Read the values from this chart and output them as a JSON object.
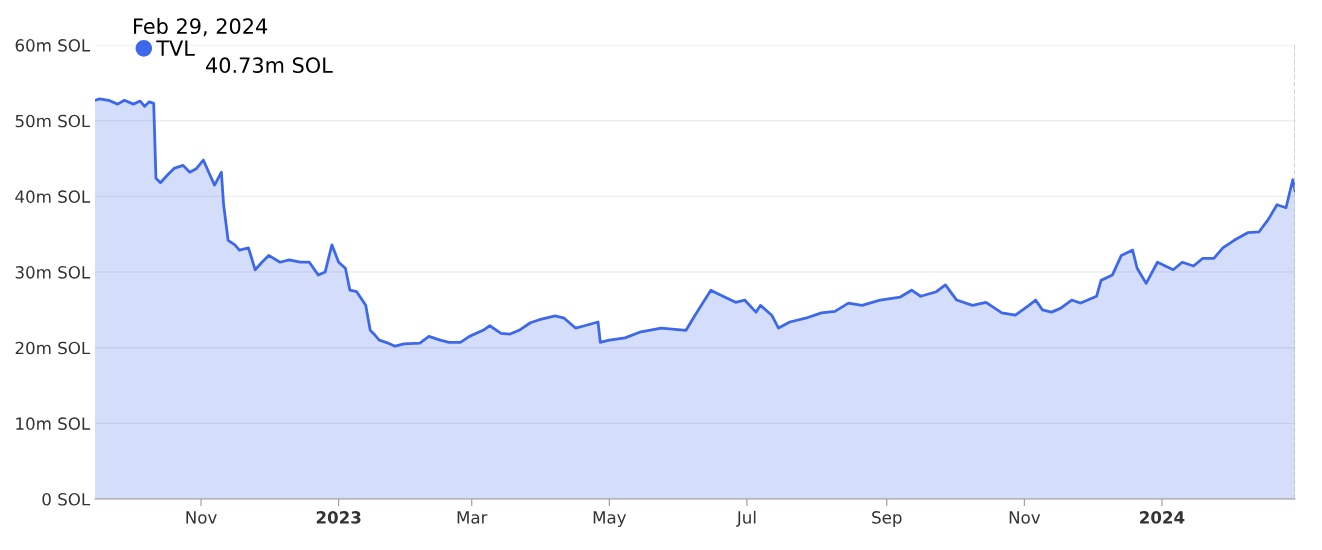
{
  "chart_data": {
    "type": "area",
    "annotations": [
      "Feb 29, 2024",
      "40.73m SOL"
    ],
    "x": [
      "2022-09-15",
      "2022-09-17",
      "2022-09-21",
      "2022-09-25",
      "2022-09-28",
      "2022-10-02",
      "2022-10-05",
      "2022-10-07",
      "2022-10-09",
      "2022-10-11",
      "2022-10-12",
      "2022-10-14",
      "2022-10-17",
      "2022-10-20",
      "2022-10-24",
      "2022-10-27",
      "2022-10-30",
      "2022-11-02",
      "2022-11-05",
      "2022-11-07",
      "2022-11-10",
      "2022-11-11",
      "2022-11-13",
      "2022-11-16",
      "2022-11-18",
      "2022-11-22",
      "2022-11-25",
      "2022-11-28",
      "2022-12-01",
      "2022-12-06",
      "2022-12-10",
      "2022-12-15",
      "2022-12-19",
      "2022-12-23",
      "2022-12-26",
      "2022-12-29",
      "2023-01-01",
      "2023-01-04",
      "2023-01-06",
      "2023-01-09",
      "2023-01-13",
      "2023-01-15",
      "2023-01-17",
      "2023-01-19",
      "2023-01-23",
      "2023-01-26",
      "2023-01-30",
      "2023-02-06",
      "2023-02-10",
      "2023-02-15",
      "2023-02-19",
      "2023-02-24",
      "2023-02-28",
      "2023-03-06",
      "2023-03-09",
      "2023-03-14",
      "2023-03-18",
      "2023-03-22",
      "2023-03-27",
      "2023-03-31",
      "2023-04-07",
      "2023-04-11",
      "2023-04-16",
      "2023-04-20",
      "2023-04-26",
      "2023-04-27",
      "2023-05-01",
      "2023-05-08",
      "2023-05-15",
      "2023-05-24",
      "2023-06-04",
      "2023-06-08",
      "2023-06-15",
      "2023-06-19",
      "2023-06-26",
      "2023-06-30",
      "2023-07-05",
      "2023-07-07",
      "2023-07-12",
      "2023-07-15",
      "2023-07-20",
      "2023-07-27",
      "2023-08-03",
      "2023-08-09",
      "2023-08-15",
      "2023-08-21",
      "2023-08-29",
      "2023-09-07",
      "2023-09-12",
      "2023-09-16",
      "2023-09-23",
      "2023-09-27",
      "2023-10-02",
      "2023-10-09",
      "2023-10-15",
      "2023-10-22",
      "2023-10-28",
      "2023-11-03",
      "2023-11-06",
      "2023-11-09",
      "2023-11-13",
      "2023-11-17",
      "2023-11-22",
      "2023-11-26",
      "2023-12-03",
      "2023-12-05",
      "2023-12-10",
      "2023-12-14",
      "2023-12-19",
      "2023-12-21",
      "2023-12-25",
      "2023-12-30",
      "2024-01-06",
      "2024-01-10",
      "2024-01-15",
      "2024-01-19",
      "2024-01-24",
      "2024-01-28",
      "2024-02-02",
      "2024-02-08",
      "2024-02-13",
      "2024-02-17",
      "2024-02-21",
      "2024-02-25",
      "2024-02-28",
      "2024-02-29"
    ],
    "series": [
      {
        "name": "TVL",
        "color": "#3d68ea",
        "values": [
          52.7,
          52.9,
          52.7,
          52.2,
          52.7,
          52.2,
          52.6,
          51.9,
          52.5,
          52.3,
          42.4,
          41.8,
          42.8,
          43.7,
          44.1,
          43.2,
          43.7,
          44.8,
          42.8,
          41.5,
          43.2,
          38.9,
          34.2,
          33.6,
          32.9,
          33.2,
          30.3,
          31.3,
          32.2,
          31.3,
          31.6,
          31.3,
          31.3,
          29.6,
          30.0,
          33.6,
          31.3,
          30.5,
          27.6,
          27.4,
          25.6,
          22.3,
          21.7,
          21.0,
          20.6,
          20.2,
          20.5,
          20.6,
          21.5,
          21.0,
          20.7,
          20.7,
          21.5,
          22.3,
          22.9,
          21.9,
          21.8,
          22.3,
          23.3,
          23.7,
          24.2,
          23.9,
          22.6,
          22.9,
          23.4,
          20.7,
          21.0,
          21.3,
          22.1,
          22.6,
          22.3,
          24.3,
          27.6,
          27.0,
          26.0,
          26.3,
          24.7,
          25.6,
          24.3,
          22.6,
          23.4,
          23.9,
          24.6,
          24.8,
          25.9,
          25.6,
          26.3,
          26.7,
          27.6,
          26.8,
          27.4,
          28.3,
          26.3,
          25.6,
          26.0,
          24.6,
          24.3,
          25.6,
          26.3,
          25.0,
          24.7,
          25.2,
          26.3,
          25.9,
          26.8,
          28.9,
          29.6,
          32.2,
          32.9,
          30.5,
          28.5,
          31.3,
          30.3,
          31.3,
          30.8,
          31.8,
          31.8,
          33.2,
          34.2,
          35.2,
          35.3,
          36.9,
          38.9,
          38.5,
          42.2,
          40.73
        ]
      }
    ],
    "xlim": [
      "2022-09-15",
      "2024-02-29"
    ],
    "xticks": [
      {
        "value": "2022-11-01",
        "label": "Nov"
      },
      {
        "value": "2023-01-01",
        "label": "2023"
      },
      {
        "value": "2023-03-01",
        "label": "Mar"
      },
      {
        "value": "2023-05-01",
        "label": "May"
      },
      {
        "value": "2023-07-01",
        "label": "Jul"
      },
      {
        "value": "2023-09-01",
        "label": "Sep"
      },
      {
        "value": "2023-11-01",
        "label": "Nov"
      },
      {
        "value": "2024-01-01",
        "label": "2024"
      }
    ],
    "ylim": [
      0,
      60
    ],
    "yticks": [
      {
        "value": 0,
        "label": "0 SOL"
      },
      {
        "value": 10,
        "label": "10m SOL"
      },
      {
        "value": 20,
        "label": "20m SOL"
      },
      {
        "value": 30,
        "label": "30m SOL"
      },
      {
        "value": 40,
        "label": "40m SOL"
      },
      {
        "value": 50,
        "label": "50m SOL"
      },
      {
        "value": 60,
        "label": "60m SOL"
      }
    ],
    "ref_lines": [
      {
        "axis": "x",
        "value": "2024-02-29",
        "color": "#bbbbbb",
        "line_style": "dashed"
      }
    ],
    "grid": "y",
    "legend": "top left",
    "marker": "none",
    "line_style": "solid"
  }
}
